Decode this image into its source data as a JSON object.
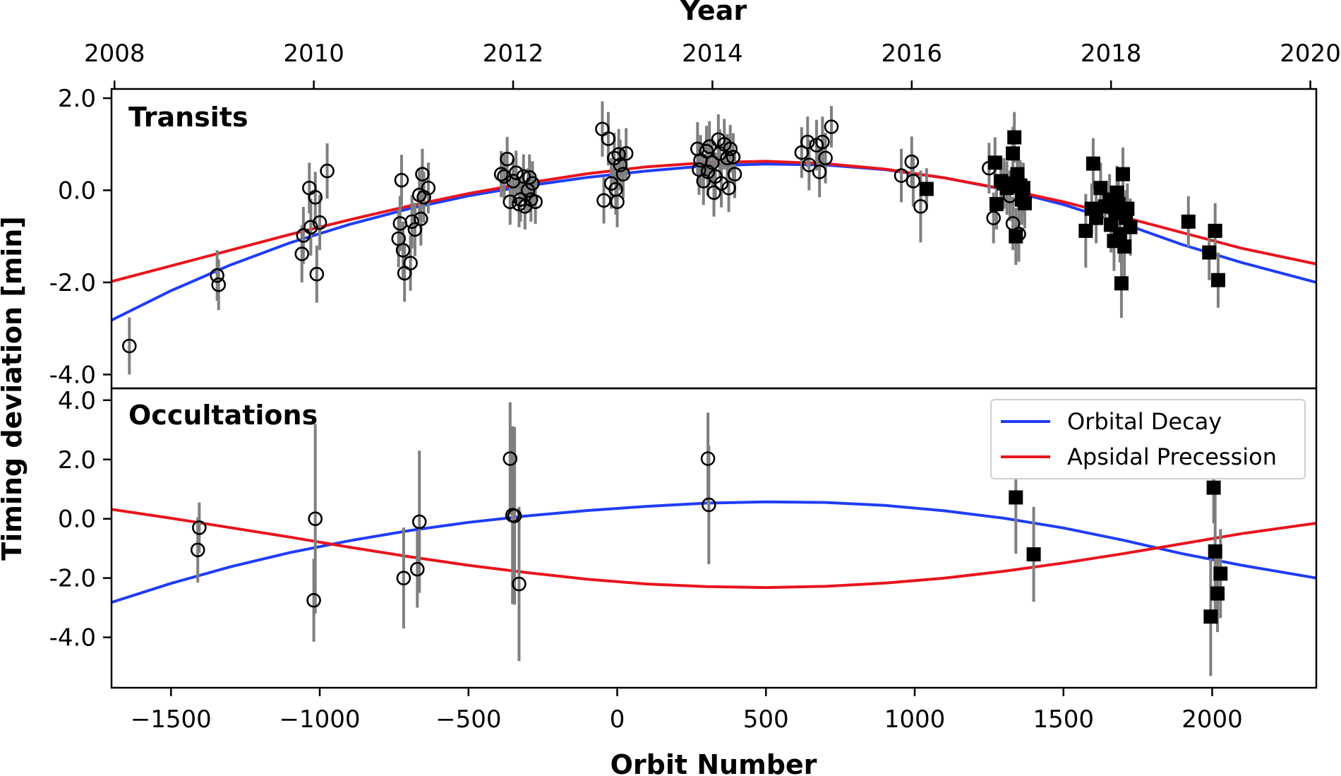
{
  "chart_data": {
    "type": "scatter",
    "x_label": "Orbit Number",
    "top_x_label": "Year",
    "y_label": "Timing deviation [min]",
    "x_range": [
      -1700,
      2350
    ],
    "x_ticks": [
      -1500,
      -1000,
      -500,
      0,
      500,
      1000,
      1500,
      2000
    ],
    "x_tick_labels": [
      "−1500",
      "−1000",
      "−500",
      "0",
      "500",
      "1000",
      "1500",
      "2000"
    ],
    "year_ticks": [
      {
        "label": "2008",
        "orbit": -1690
      },
      {
        "label": "2010",
        "orbit": -1020
      },
      {
        "label": "2012",
        "orbit": -350
      },
      {
        "label": "2014",
        "orbit": 320
      },
      {
        "label": "2016",
        "orbit": 990
      },
      {
        "label": "2018",
        "orbit": 1660
      },
      {
        "label": "2020",
        "orbit": 2330
      }
    ],
    "legend": {
      "entries": [
        {
          "label": "Orbital Decay",
          "color": "#1f3df5"
        },
        {
          "label": "Apsidal Precession",
          "color": "#e8141c"
        }
      ],
      "placement": "upper-right of occultations panel"
    },
    "panels": [
      {
        "id": "transits",
        "title": "Transits",
        "y_range": [
          -4.3,
          2.2
        ],
        "y_ticks": [
          2.0,
          0.0,
          -2.0,
          -4.0
        ],
        "y_tick_labels": [
          "2.0",
          "0.0",
          "-2.0",
          "-4.0"
        ],
        "models": {
          "decay": [
            [
              -1700,
              -2.82
            ],
            [
              -1500,
              -2.18
            ],
            [
              -1300,
              -1.62
            ],
            [
              -1100,
              -1.14
            ],
            [
              -900,
              -0.74
            ],
            [
              -700,
              -0.4
            ],
            [
              -500,
              -0.12
            ],
            [
              -300,
              0.1
            ],
            [
              -100,
              0.28
            ],
            [
              100,
              0.42
            ],
            [
              300,
              0.53
            ],
            [
              500,
              0.57
            ],
            [
              700,
              0.55
            ],
            [
              900,
              0.45
            ],
            [
              1100,
              0.27
            ],
            [
              1300,
              0.02
            ],
            [
              1500,
              -0.31
            ],
            [
              1700,
              -0.72
            ],
            [
              1900,
              -1.18
            ],
            [
              2100,
              -1.57
            ],
            [
              2350,
              -2.0
            ]
          ],
          "precession": [
            [
              -1700,
              -1.98
            ],
            [
              -1500,
              -1.64
            ],
            [
              -1300,
              -1.3
            ],
            [
              -1100,
              -0.96
            ],
            [
              -900,
              -0.64
            ],
            [
              -700,
              -0.34
            ],
            [
              -500,
              -0.07
            ],
            [
              -300,
              0.16
            ],
            [
              -100,
              0.36
            ],
            [
              100,
              0.51
            ],
            [
              300,
              0.6
            ],
            [
              500,
              0.63
            ],
            [
              700,
              0.58
            ],
            [
              900,
              0.46
            ],
            [
              1100,
              0.27
            ],
            [
              1300,
              0.03
            ],
            [
              1500,
              -0.25
            ],
            [
              1700,
              -0.58
            ],
            [
              1900,
              -0.92
            ],
            [
              2100,
              -1.26
            ],
            [
              2350,
              -1.6
            ]
          ]
        },
        "transit_circles": [
          [
            -1640,
            -3.38,
            0.62
          ],
          [
            -1345,
            -1.85,
            0.55
          ],
          [
            -1340,
            -2.05,
            0.55
          ],
          [
            -1060,
            -1.38,
            0.62
          ],
          [
            -1055,
            -0.98,
            0.62
          ],
          [
            -1035,
            0.05,
            0.55
          ],
          [
            -1030,
            -0.8,
            0.62
          ],
          [
            -1015,
            -0.15,
            0.55
          ],
          [
            -1010,
            -1.82,
            0.62
          ],
          [
            -1000,
            -0.7,
            0.6
          ],
          [
            -975,
            0.42,
            0.6
          ],
          [
            -735,
            -1.05,
            0.62
          ],
          [
            -730,
            -0.72,
            0.6
          ],
          [
            -725,
            0.22,
            0.55
          ],
          [
            -720,
            -1.3,
            0.62
          ],
          [
            -715,
            -1.8,
            0.62
          ],
          [
            -695,
            -1.58,
            0.6
          ],
          [
            -690,
            -0.68,
            0.58
          ],
          [
            -680,
            -0.85,
            0.58
          ],
          [
            -665,
            -0.1,
            0.55
          ],
          [
            -660,
            -0.62,
            0.58
          ],
          [
            -655,
            0.35,
            0.55
          ],
          [
            -650,
            -0.15,
            0.55
          ],
          [
            -635,
            0.05,
            0.55
          ],
          [
            -390,
            0.35,
            0.5
          ],
          [
            -380,
            0.3,
            0.48
          ],
          [
            -370,
            0.68,
            0.48
          ],
          [
            -360,
            -0.25,
            0.5
          ],
          [
            -350,
            0.2,
            0.48
          ],
          [
            -340,
            0.38,
            0.48
          ],
          [
            -330,
            -0.3,
            0.5
          ],
          [
            -325,
            -0.2,
            0.48
          ],
          [
            -315,
            0.3,
            0.48
          ],
          [
            -310,
            -0.35,
            0.5
          ],
          [
            -300,
            0.0,
            0.48
          ],
          [
            -295,
            0.28,
            0.5
          ],
          [
            -290,
            -0.2,
            0.48
          ],
          [
            -285,
            0.15,
            0.48
          ],
          [
            -275,
            -0.25,
            0.48
          ],
          [
            -50,
            1.33,
            0.6
          ],
          [
            -45,
            -0.22,
            0.5
          ],
          [
            -30,
            1.12,
            0.58
          ],
          [
            -20,
            0.15,
            0.55
          ],
          [
            -10,
            0.7,
            0.55
          ],
          [
            -5,
            0.02,
            0.55
          ],
          [
            0,
            -0.25,
            0.55
          ],
          [
            5,
            0.78,
            0.55
          ],
          [
            10,
            0.55,
            0.55
          ],
          [
            20,
            0.35,
            0.52
          ],
          [
            30,
            0.8,
            0.55
          ],
          [
            270,
            0.9,
            0.58
          ],
          [
            275,
            0.45,
            0.55
          ],
          [
            280,
            0.65,
            0.55
          ],
          [
            290,
            0.2,
            0.52
          ],
          [
            300,
            0.85,
            0.55
          ],
          [
            305,
            0.4,
            0.52
          ],
          [
            310,
            0.95,
            0.55
          ],
          [
            320,
            0.6,
            0.52
          ],
          [
            325,
            -0.05,
            0.52
          ],
          [
            330,
            0.3,
            0.52
          ],
          [
            340,
            1.1,
            0.55
          ],
          [
            345,
            0.8,
            0.52
          ],
          [
            350,
            0.15,
            0.52
          ],
          [
            360,
            1.0,
            0.55
          ],
          [
            370,
            0.7,
            0.52
          ],
          [
            375,
            0.05,
            0.52
          ],
          [
            380,
            0.9,
            0.52
          ],
          [
            390,
            0.72,
            0.52
          ],
          [
            395,
            0.35,
            0.52
          ],
          [
            620,
            0.82,
            0.55
          ],
          [
            640,
            1.05,
            0.55
          ],
          [
            645,
            0.55,
            0.55
          ],
          [
            670,
            0.98,
            0.55
          ],
          [
            680,
            0.4,
            0.55
          ],
          [
            690,
            1.05,
            0.55
          ],
          [
            700,
            0.7,
            0.55
          ],
          [
            720,
            1.38,
            0.45
          ],
          [
            955,
            0.32,
            0.58
          ],
          [
            990,
            0.62,
            0.55
          ],
          [
            995,
            0.2,
            0.55
          ],
          [
            1020,
            -0.35,
            0.78
          ],
          [
            1250,
            0.48,
            0.55
          ],
          [
            1265,
            -0.6,
            0.55
          ],
          [
            1320,
            -0.12,
            0.55
          ],
          [
            1330,
            -0.72,
            0.58
          ],
          [
            1345,
            0.22,
            0.58
          ],
          [
            1350,
            -0.95,
            0.6
          ]
        ],
        "transit_squares": [
          [
            1040,
            0.03,
            0.45
          ],
          [
            1270,
            0.6,
            0.55
          ],
          [
            1275,
            -0.3,
            0.55
          ],
          [
            1290,
            0.2,
            0.55
          ],
          [
            1300,
            0.15,
            0.55
          ],
          [
            1310,
            0.05,
            0.58
          ],
          [
            1330,
            0.8,
            0.58
          ],
          [
            1335,
            1.15,
            0.55
          ],
          [
            1340,
            -1.0,
            0.62
          ],
          [
            1345,
            0.35,
            0.58
          ],
          [
            1355,
            0.1,
            0.55
          ],
          [
            1360,
            -0.2,
            0.55
          ],
          [
            1365,
            0.05,
            0.55
          ],
          [
            1370,
            -0.28,
            0.55
          ],
          [
            1575,
            -0.88,
            0.8
          ],
          [
            1595,
            -0.4,
            0.55
          ],
          [
            1600,
            0.58,
            0.55
          ],
          [
            1610,
            -0.6,
            0.55
          ],
          [
            1625,
            0.05,
            0.55
          ],
          [
            1640,
            -0.35,
            0.55
          ],
          [
            1655,
            -0.2,
            0.55
          ],
          [
            1660,
            -0.75,
            0.6
          ],
          [
            1670,
            -1.1,
            0.65
          ],
          [
            1675,
            -0.5,
            0.55
          ],
          [
            1680,
            -0.05,
            0.58
          ],
          [
            1685,
            -0.3,
            0.55
          ],
          [
            1690,
            -0.95,
            0.62
          ],
          [
            1695,
            -2.02,
            0.75
          ],
          [
            1700,
            0.35,
            0.58
          ],
          [
            1705,
            -1.22,
            0.65
          ],
          [
            1710,
            -0.6,
            0.6
          ],
          [
            1715,
            -0.4,
            0.55
          ],
          [
            1725,
            -0.8,
            0.62
          ],
          [
            1920,
            -0.68,
            0.55
          ],
          [
            1990,
            -1.35,
            0.6
          ],
          [
            2010,
            -0.88,
            0.6
          ],
          [
            2020,
            -1.95,
            0.6
          ]
        ]
      },
      {
        "id": "occultations",
        "title": "Occultations",
        "y_range": [
          -5.7,
          4.4
        ],
        "y_ticks": [
          4.0,
          2.0,
          0.0,
          -2.0,
          -4.0
        ],
        "y_tick_labels": [
          "4.0",
          "2.0",
          "0.0",
          "-2.0",
          "-4.0"
        ],
        "models": {
          "decay": [
            [
              -1700,
              -2.82
            ],
            [
              -1500,
              -2.18
            ],
            [
              -1300,
              -1.62
            ],
            [
              -1100,
              -1.14
            ],
            [
              -900,
              -0.74
            ],
            [
              -700,
              -0.4
            ],
            [
              -500,
              -0.12
            ],
            [
              -300,
              0.1
            ],
            [
              -100,
              0.28
            ],
            [
              100,
              0.42
            ],
            [
              300,
              0.53
            ],
            [
              500,
              0.57
            ],
            [
              700,
              0.55
            ],
            [
              900,
              0.45
            ],
            [
              1100,
              0.27
            ],
            [
              1300,
              0.02
            ],
            [
              1500,
              -0.31
            ],
            [
              1700,
              -0.72
            ],
            [
              1900,
              -1.18
            ],
            [
              2100,
              -1.57
            ],
            [
              2350,
              -2.0
            ]
          ],
          "precession": [
            [
              -1700,
              0.32
            ],
            [
              -1500,
              0.02
            ],
            [
              -1300,
              -0.3
            ],
            [
              -1100,
              -0.62
            ],
            [
              -900,
              -0.96
            ],
            [
              -700,
              -1.28
            ],
            [
              -500,
              -1.57
            ],
            [
              -300,
              -1.82
            ],
            [
              -100,
              -2.04
            ],
            [
              100,
              -2.2
            ],
            [
              300,
              -2.29
            ],
            [
              500,
              -2.32
            ],
            [
              700,
              -2.28
            ],
            [
              900,
              -2.17
            ],
            [
              1100,
              -2.0
            ],
            [
              1300,
              -1.77
            ],
            [
              1500,
              -1.49
            ],
            [
              1700,
              -1.18
            ],
            [
              1900,
              -0.84
            ],
            [
              2100,
              -0.5
            ],
            [
              2350,
              -0.15
            ]
          ]
        },
        "occultation_circles": [
          [
            -1405,
            -0.3,
            0.85
          ],
          [
            -1410,
            -1.05,
            1.1
          ],
          [
            -1015,
            0.0,
            3.2
          ],
          [
            -1020,
            -2.75,
            1.4
          ],
          [
            -718,
            -2.0,
            1.7
          ],
          [
            -672,
            -1.7,
            1.3
          ],
          [
            -665,
            -0.1,
            2.4
          ],
          [
            -360,
            2.03,
            1.9
          ],
          [
            -352,
            0.12,
            3.0
          ],
          [
            -345,
            0.1,
            3.0
          ],
          [
            -330,
            -2.2,
            2.6
          ],
          [
            305,
            2.03,
            1.55
          ],
          [
            308,
            0.47,
            2.0
          ]
        ],
        "occultation_squares": [
          [
            1340,
            0.72,
            1.9
          ],
          [
            1400,
            -1.2,
            1.6
          ],
          [
            1995,
            -3.3,
            2.0
          ],
          [
            2005,
            1.05,
            1.2
          ],
          [
            2010,
            -1.1,
            2.2
          ],
          [
            2018,
            -2.52,
            1.3
          ],
          [
            2028,
            -1.85,
            1.5
          ]
        ]
      }
    ]
  }
}
